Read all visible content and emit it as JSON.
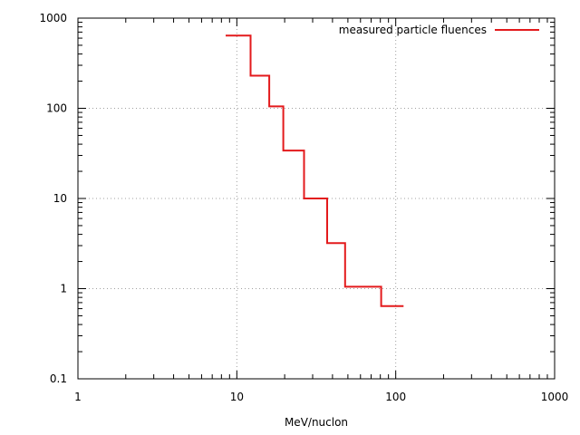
{
  "chart_data": {
    "type": "line",
    "step": true,
    "title": "",
    "xlabel": "MeV/nuclon",
    "ylabel": "",
    "xscale": "log",
    "yscale": "log",
    "xlim": [
      1,
      1000
    ],
    "ylim": [
      0.1,
      1000
    ],
    "grid": true,
    "legend_position": "top-right",
    "x_ticks": [
      "1",
      "10",
      "100",
      "1000"
    ],
    "y_ticks": [
      "0.1",
      "1",
      "10",
      "100",
      "1000"
    ],
    "series": [
      {
        "name": "measured particle fluences",
        "color": "#e31a1c",
        "x": [
          8.5,
          12.2,
          16.0,
          19.6,
          26.5,
          37.0,
          48.0,
          81.0,
          112.0
        ],
        "y": [
          640,
          230,
          105,
          34,
          10,
          3.2,
          1.05,
          0.64,
          0.64
        ]
      }
    ]
  }
}
